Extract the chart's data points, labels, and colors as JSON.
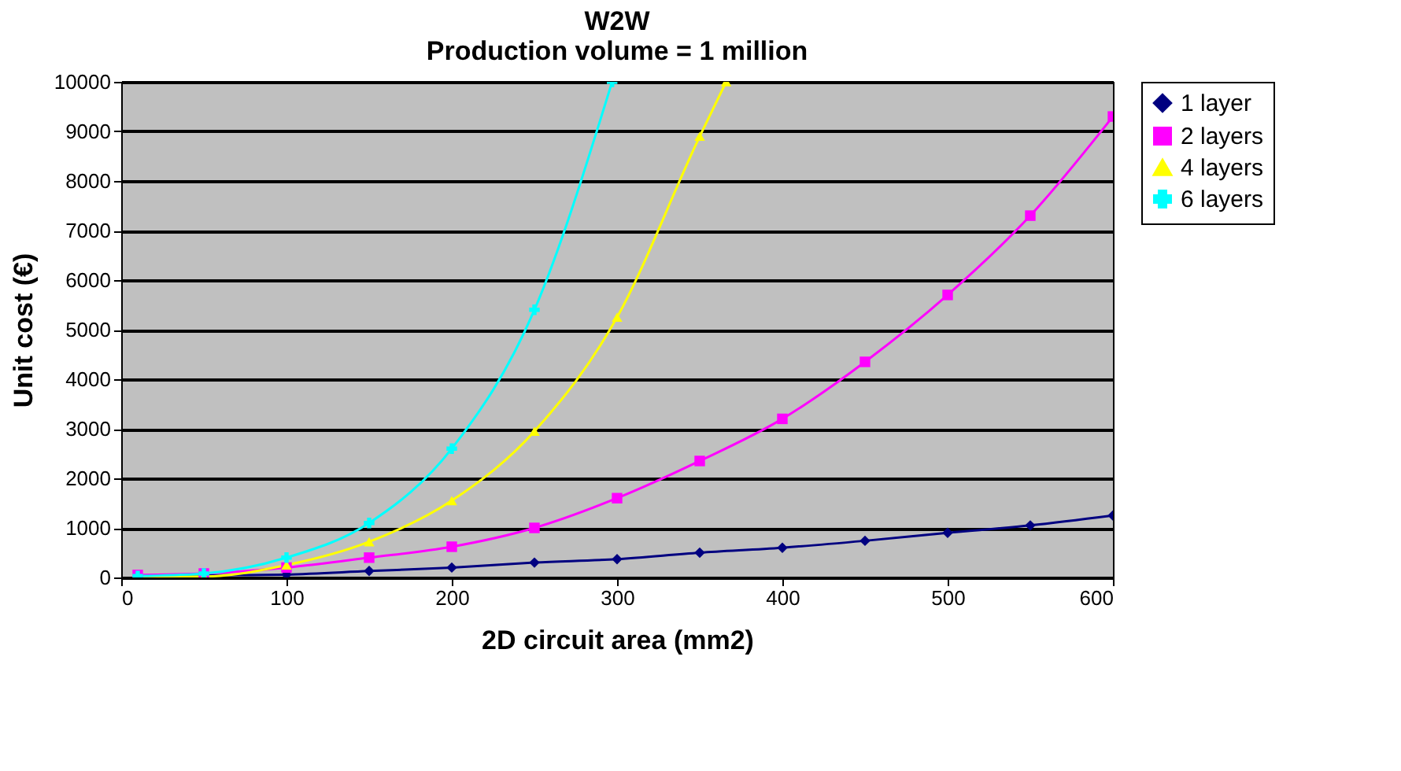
{
  "chart_data": {
    "type": "line",
    "title": [
      "W2W",
      "Production volume = 1 million"
    ],
    "xlabel": "2D circuit area (mm2)",
    "ylabel": "Unit cost (€)",
    "xlim": [
      0,
      600
    ],
    "xticks": [
      0,
      100,
      200,
      300,
      400,
      500,
      600
    ],
    "ylim": [
      0,
      10000
    ],
    "yticks": [
      0,
      1000,
      2000,
      3000,
      4000,
      5000,
      6000,
      7000,
      8000,
      9000,
      10000
    ],
    "grid": "y",
    "legend": "right",
    "series": [
      {
        "name": "1 layer",
        "color": "#000080",
        "marker": "diamond",
        "x": [
          10,
          50,
          100,
          150,
          200,
          250,
          300,
          350,
          400,
          450,
          500,
          550,
          600
        ],
        "values": [
          20,
          40,
          60,
          130,
          200,
          300,
          370,
          500,
          600,
          740,
          900,
          1050,
          1250
        ]
      },
      {
        "name": "2 layers",
        "color": "#ff00ff",
        "marker": "square",
        "x": [
          10,
          50,
          100,
          150,
          200,
          250,
          300,
          350,
          400,
          450,
          500,
          550,
          600
        ],
        "values": [
          50,
          80,
          200,
          400,
          620,
          1000,
          1600,
          2350,
          3200,
          4350,
          5700,
          7300,
          9300
        ]
      },
      {
        "name": "4 layers",
        "color": "#ffff00",
        "marker": "triangle",
        "x": [
          10,
          50,
          100,
          150,
          200,
          250,
          300,
          350,
          366
        ],
        "values": [
          20,
          20,
          250,
          720,
          1550,
          2950,
          5250,
          8900,
          10000
        ]
      },
      {
        "name": "6 layers",
        "color": "#00ffff",
        "marker": "cross",
        "x": [
          10,
          50,
          100,
          150,
          200,
          250,
          297
        ],
        "values": [
          30,
          80,
          400,
          1100,
          2600,
          5400,
          10000
        ]
      }
    ]
  }
}
